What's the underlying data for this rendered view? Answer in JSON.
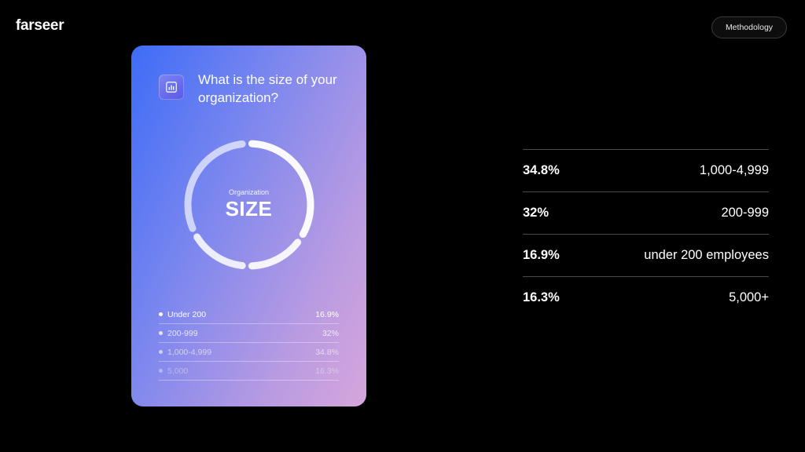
{
  "header": {
    "logo": "farseer",
    "methodology_label": "Methodology"
  },
  "card": {
    "icon": "bar-chart-icon",
    "title": "What is the size of your organization?",
    "donut_subtitle": "Organization",
    "donut_title": "SIZE",
    "legend": [
      {
        "label": "Under 200",
        "value": "16.9%",
        "opacity": 1.0
      },
      {
        "label": "200-999",
        "value": "32%",
        "opacity": 0.78
      },
      {
        "label": "1,000-4,999",
        "value": "34.8%",
        "opacity": 0.6
      },
      {
        "label": "5,000",
        "value": "16.3%",
        "opacity": 0.38
      }
    ]
  },
  "chart_data": {
    "type": "pie",
    "title": "",
    "categories": [
      "Under 200",
      "200-999",
      "1,000-4,999",
      "5,000"
    ],
    "values": [
      16.9,
      32,
      34.8,
      16.3
    ],
    "unit": "%"
  },
  "stats": [
    {
      "percent": "34.8%",
      "label": "1,000-4,999"
    },
    {
      "percent": "32%",
      "label": "200-999"
    },
    {
      "percent": "16.9%",
      "label": "under 200 employees"
    },
    {
      "percent": "16.3%",
      "label": "5,000+"
    }
  ],
  "colors": {
    "background": "#000000",
    "card_gradient_start": "#3d6cf7",
    "card_gradient_end": "#d6a6db"
  }
}
